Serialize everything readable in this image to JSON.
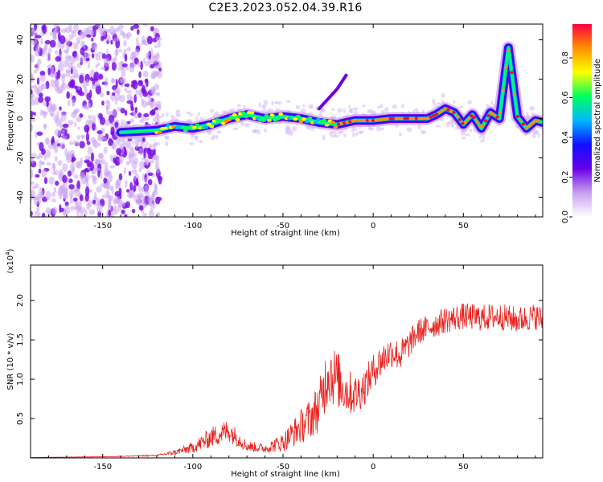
{
  "title": "C2E3.2023.052.04.39.R16",
  "colors": {
    "snr_line": "#e8211e",
    "spectro_bg": "#ffffff"
  },
  "chart_data": [
    {
      "type": "heatmap",
      "xlabel": "Height of straight line (km)",
      "ylabel": "Frequency (Hz)",
      "xlim": [
        -190,
        94
      ],
      "ylim": [
        -50,
        48
      ],
      "xticks": [
        -150,
        -100,
        -50,
        0,
        50
      ],
      "yticks": [
        -40,
        -20,
        0,
        20,
        40
      ],
      "grid": false,
      "colorbar": {
        "label": "Normalized spectral amplitude",
        "range": [
          0,
          0.97
        ],
        "ticks": [
          0.0,
          0.2,
          0.4,
          0.6,
          0.8
        ],
        "tick_labels": [
          "0.0",
          "0.2",
          "0.4",
          "0.6",
          "0.8"
        ],
        "colors": [
          "#ffffff",
          "#c8a0f0",
          "#6a00e8",
          "#1010ff",
          "#00b8ff",
          "#00ff60",
          "#ffff00",
          "#ff9000",
          "#ff0040"
        ]
      },
      "noise_region_x": [
        -190,
        -118
      ],
      "ridge": {
        "x": [
          -140,
          -120,
          -110,
          -100,
          -90,
          -80,
          -70,
          -60,
          -50,
          -40,
          -30,
          -20,
          -10,
          0,
          10,
          20,
          30,
          35,
          40,
          45,
          50,
          55,
          60,
          65,
          70,
          75,
          80,
          85,
          90,
          94
        ],
        "y": [
          -7,
          -6,
          -4,
          -5,
          -3,
          0,
          2,
          0,
          1,
          0,
          -2,
          -3,
          -1,
          -1,
          0,
          0,
          0,
          2,
          5,
          3,
          -3,
          2,
          -5,
          3,
          0,
          36,
          1,
          -5,
          -1,
          -2
        ]
      },
      "spur": {
        "x": [
          -30,
          -25,
          -20,
          -15
        ],
        "y": [
          5,
          10,
          15,
          22
        ]
      }
    },
    {
      "type": "line",
      "xlabel": "Height of straight line (km)",
      "ylabel": "SNR (10 * v/v)",
      "y_multiplier_label": "(x10",
      "y_multiplier_exp": "4",
      "y_multiplier_close": ")",
      "xlim": [
        -190,
        94
      ],
      "ylim": [
        0,
        24500
      ],
      "xticks": [
        -150,
        -100,
        -50,
        0,
        50
      ],
      "yticks": [
        5000,
        10000,
        15000,
        20000
      ],
      "ytick_labels": [
        "0.5",
        "1.0",
        "1.5",
        "2.0"
      ],
      "grid": false,
      "series": [
        {
          "x": [
            -190,
            -150,
            -120,
            -110,
            -100,
            -90,
            -80,
            -70,
            -60,
            -50,
            -40,
            -35,
            -30,
            -25,
            -20,
            -15,
            -10,
            -5,
            0,
            5,
            10,
            15,
            20,
            25,
            30,
            40,
            50,
            60,
            70,
            80,
            90,
            94
          ],
          "y": [
            50,
            150,
            300,
            700,
            1300,
            2600,
            3500,
            1500,
            1200,
            2000,
            4000,
            5000,
            6500,
            11000,
            10000,
            8500,
            8000,
            9000,
            11000,
            12500,
            13500,
            13000,
            14500,
            16000,
            16500,
            17500,
            18000,
            17800,
            18000,
            17500,
            18000,
            17500
          ],
          "noise": [
            0,
            30,
            80,
            350,
            700,
            1300,
            1500,
            700,
            600,
            1200,
            2200,
            2600,
            3200,
            4200,
            3800,
            3000,
            2600,
            2400,
            2200,
            2200,
            2000,
            2000,
            1800,
            1700,
            1600,
            1700,
            1700,
            1700,
            1700,
            1700,
            1700,
            1700
          ]
        }
      ]
    }
  ]
}
